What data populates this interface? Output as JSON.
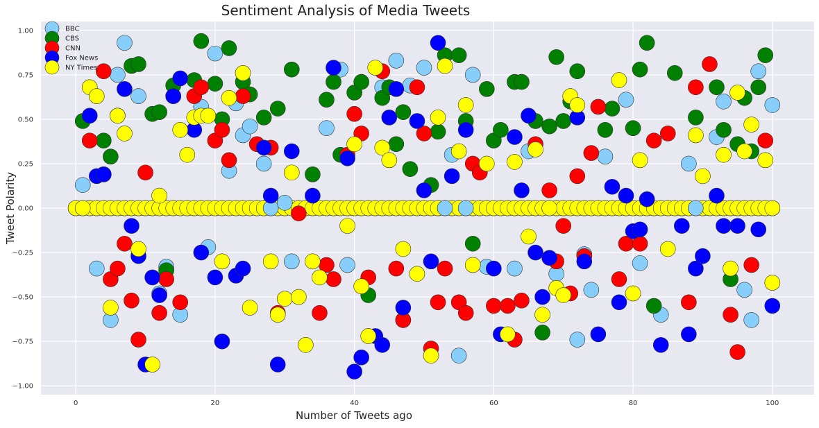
{
  "chart_data": {
    "type": "scatter",
    "title": "Sentiment Analysis of Media Tweets",
    "xlabel": "Number of Tweets ago",
    "ylabel": "Tweet Polarity",
    "xlim": [
      -5,
      106
    ],
    "ylim": [
      -1.05,
      1.05
    ],
    "x_ticks": [
      0,
      20,
      40,
      60,
      80,
      100
    ],
    "y_ticks": [
      -1.0,
      -0.75,
      -0.5,
      -0.25,
      0.0,
      0.25,
      0.5,
      0.75,
      1.0
    ],
    "x_tick_labels": [
      "0",
      "20",
      "40",
      "60",
      "80",
      "100"
    ],
    "y_tick_labels": [
      "−1.00",
      "−0.75",
      "−0.50",
      "−0.25",
      "0.00",
      "0.25",
      "0.50",
      "0.75",
      "1.00"
    ],
    "grid": true,
    "background": "#e8e8f0",
    "legend_position": "top-left",
    "series": [
      {
        "name": "BBC",
        "color": "#87cefa",
        "x": [
          1,
          3,
          4,
          5,
          6,
          7,
          9,
          12,
          13,
          15,
          18,
          19,
          20,
          22,
          23,
          24,
          25,
          27,
          28,
          30,
          31,
          36,
          38,
          39,
          44,
          46,
          47,
          48,
          50,
          53,
          54,
          55,
          56,
          57,
          59,
          63,
          65,
          69,
          72,
          73,
          74,
          76,
          79,
          81,
          84,
          88,
          89,
          92,
          93,
          96,
          97,
          98,
          100
        ],
        "y": [
          0.13,
          -0.34,
          0.19,
          -0.63,
          0.75,
          0.93,
          0.63,
          -0.48,
          -0.33,
          -0.6,
          0.57,
          -0.22,
          0.87,
          0.21,
          0.59,
          0.41,
          0.46,
          0.25,
          0.0,
          0.03,
          -0.3,
          0.45,
          0.78,
          -0.32,
          0.68,
          0.83,
          -0.63,
          0.69,
          0.79,
          0.0,
          0.3,
          -0.83,
          0.0,
          0.75,
          -0.33,
          -0.34,
          0.32,
          -0.37,
          -0.74,
          -0.26,
          -0.46,
          0.29,
          0.61,
          -0.31,
          -0.6,
          0.25,
          0.0,
          0.4,
          0.6,
          -0.46,
          -0.63,
          0.77,
          0.58
        ]
      },
      {
        "name": "CBS",
        "color": "#008000",
        "x": [
          1,
          4,
          5,
          6,
          8,
          9,
          11,
          12,
          13,
          14,
          17,
          18,
          20,
          21,
          22,
          24,
          25,
          27,
          29,
          31,
          34,
          36,
          37,
          38,
          40,
          41,
          42,
          44,
          45,
          46,
          47,
          48,
          51,
          52,
          53,
          55,
          56,
          57,
          59,
          60,
          61,
          63,
          64,
          66,
          67,
          68,
          69,
          70,
          71,
          72,
          76,
          77,
          80,
          81,
          82,
          83,
          86,
          89,
          92,
          93,
          94,
          95,
          96,
          97,
          98,
          99
        ],
        "y": [
          0.49,
          0.38,
          0.29,
          0.52,
          0.8,
          0.81,
          0.53,
          0.54,
          -0.35,
          0.69,
          0.72,
          0.94,
          0.7,
          0.5,
          0.9,
          0.71,
          0.64,
          0.51,
          0.56,
          0.78,
          0.19,
          0.61,
          0.71,
          0.3,
          0.65,
          0.71,
          -0.49,
          0.62,
          0.68,
          0.36,
          0.54,
          0.22,
          0.13,
          0.43,
          0.86,
          0.86,
          0.49,
          -0.2,
          0.67,
          0.38,
          0.44,
          0.71,
          0.71,
          0.49,
          -0.7,
          0.46,
          0.85,
          0.49,
          0.6,
          0.77,
          0.44,
          0.56,
          0.45,
          0.78,
          0.93,
          -0.55,
          0.76,
          0.51,
          0.68,
          0.44,
          -0.4,
          0.36,
          0.62,
          0.32,
          0.68,
          0.86
        ]
      },
      {
        "name": "CNN",
        "color": "#ff0000",
        "x": [
          2,
          4,
          5,
          6,
          7,
          8,
          9,
          10,
          12,
          13,
          14,
          15,
          17,
          18,
          20,
          21,
          22,
          24,
          26,
          28,
          29,
          32,
          35,
          36,
          37,
          39,
          40,
          41,
          42,
          44,
          46,
          47,
          49,
          50,
          51,
          52,
          53,
          55,
          56,
          57,
          58,
          60,
          62,
          63,
          64,
          66,
          68,
          69,
          70,
          71,
          72,
          73,
          74,
          75,
          78,
          79,
          81,
          83,
          85,
          88,
          89,
          91,
          94,
          95,
          97,
          99
        ],
        "y": [
          0.38,
          0.77,
          -0.4,
          -0.34,
          -0.2,
          -0.52,
          -0.74,
          0.2,
          -0.59,
          -0.4,
          0.63,
          -0.53,
          0.63,
          0.68,
          0.38,
          0.44,
          0.27,
          0.63,
          0.36,
          0.34,
          -0.59,
          -0.03,
          -0.59,
          -0.32,
          -0.4,
          0.3,
          0.53,
          0.42,
          -0.39,
          0.77,
          -0.34,
          -0.63,
          0.68,
          0.42,
          -0.79,
          -0.53,
          -0.34,
          -0.53,
          -0.59,
          0.25,
          0.2,
          -0.55,
          -0.55,
          -0.74,
          -0.52,
          0.36,
          0.1,
          -0.3,
          -0.1,
          -0.48,
          0.18,
          -0.27,
          0.31,
          0.57,
          -0.4,
          -0.2,
          -0.2,
          0.38,
          0.42,
          -0.53,
          0.68,
          0.81,
          -0.6,
          -0.81,
          -0.32,
          0.38
        ]
      },
      {
        "name": "Fox News",
        "color": "#0000ff",
        "x": [
          2,
          3,
          4,
          7,
          8,
          9,
          10,
          11,
          12,
          14,
          15,
          17,
          18,
          20,
          21,
          23,
          24,
          27,
          28,
          29,
          31,
          34,
          37,
          39,
          40,
          41,
          43,
          44,
          45,
          46,
          47,
          49,
          50,
          51,
          52,
          54,
          56,
          60,
          61,
          63,
          64,
          65,
          66,
          67,
          68,
          72,
          73,
          75,
          77,
          78,
          79,
          80,
          81,
          82,
          84,
          87,
          88,
          89,
          90,
          92,
          93,
          95,
          98,
          100
        ],
        "y": [
          0.52,
          0.18,
          0.19,
          0.67,
          -0.1,
          -0.27,
          -0.88,
          -0.39,
          -0.49,
          0.63,
          0.73,
          0.44,
          -0.25,
          -0.39,
          -0.75,
          -0.38,
          -0.34,
          0.34,
          0.07,
          -0.88,
          0.32,
          0.07,
          0.79,
          0.28,
          -0.92,
          -0.84,
          -0.72,
          -0.77,
          0.51,
          0.67,
          -0.56,
          0.49,
          0.1,
          -0.3,
          0.93,
          0.18,
          0.44,
          -0.34,
          -0.71,
          0.4,
          0.1,
          0.52,
          -0.25,
          -0.5,
          -0.28,
          0.51,
          -0.3,
          -0.71,
          0.12,
          -0.53,
          0.07,
          -0.13,
          -0.12,
          0.05,
          -0.77,
          -0.1,
          -0.71,
          -0.34,
          -0.27,
          0.07,
          -0.1,
          -0.1,
          -0.12,
          -0.55
        ]
      },
      {
        "name": "NY Times",
        "color": "#ffff00",
        "x": [
          1,
          2,
          3,
          5,
          6,
          7,
          9,
          11,
          12,
          15,
          16,
          17,
          18,
          19,
          21,
          22,
          24,
          25,
          28,
          29,
          30,
          31,
          32,
          33,
          34,
          35,
          39,
          40,
          41,
          42,
          43,
          44,
          45,
          47,
          49,
          51,
          52,
          53,
          55,
          56,
          57,
          59,
          62,
          63,
          65,
          66,
          67,
          68,
          69,
          70,
          71,
          72,
          78,
          80,
          81,
          85,
          89,
          90,
          93,
          94,
          95,
          96,
          97,
          99,
          100
        ],
        "y": [
          0.0,
          0.68,
          0.63,
          -0.56,
          0.52,
          0.42,
          -0.23,
          -0.88,
          0.07,
          0.44,
          0.3,
          0.51,
          0.52,
          0.52,
          -0.3,
          0.62,
          0.76,
          -0.56,
          -0.3,
          -0.6,
          -0.51,
          0.2,
          -0.5,
          -0.77,
          -0.3,
          -0.39,
          -0.1,
          0.36,
          -0.44,
          -0.72,
          0.79,
          0.34,
          0.27,
          -0.23,
          -0.37,
          -0.83,
          0.51,
          0.8,
          0.32,
          0.58,
          -0.32,
          0.25,
          -0.71,
          0.26,
          -0.16,
          0.33,
          -0.6,
          0.0,
          -0.45,
          -0.49,
          0.63,
          0.58,
          0.72,
          -0.48,
          0.27,
          -0.23,
          0.41,
          0.18,
          0.3,
          -0.34,
          0.65,
          0.32,
          0.47,
          0.27,
          -0.42
        ]
      }
    ],
    "zero_line_points": [
      0,
      1,
      2,
      3,
      4,
      5,
      6,
      7,
      8,
      9,
      10,
      11,
      12,
      13,
      14,
      15,
      16,
      17,
      18,
      19,
      20,
      21,
      22,
      23,
      24,
      25,
      26,
      27,
      28,
      29,
      30,
      31,
      32,
      33,
      34,
      35,
      36,
      37,
      38,
      39,
      40,
      41,
      42,
      43,
      44,
      45,
      46,
      47,
      48,
      49,
      50,
      51,
      52,
      53,
      54,
      55,
      56,
      57,
      58,
      59,
      60,
      61,
      62,
      63,
      64,
      65,
      66,
      67,
      68,
      69,
      70,
      71,
      72,
      73,
      74,
      75,
      76,
      77,
      78,
      79,
      80,
      81,
      82,
      83,
      84,
      85,
      86,
      87,
      88,
      89,
      90,
      91,
      92,
      93,
      94,
      95,
      96,
      97,
      98,
      99,
      100
    ]
  }
}
